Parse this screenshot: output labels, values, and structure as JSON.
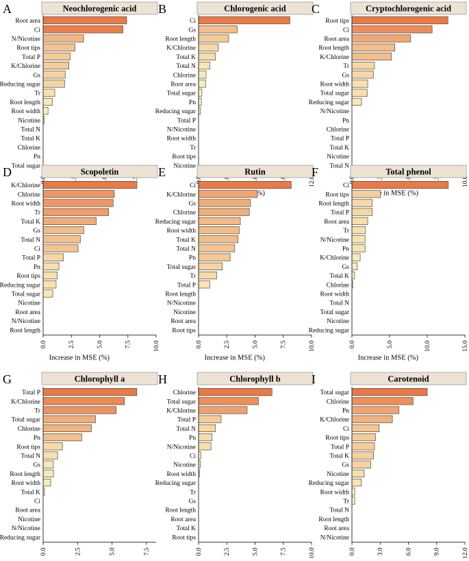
{
  "figure": {
    "xlabel_common": "Increase in MSE (%)"
  },
  "colors": {
    "title_fill": "#ece3d4",
    "bar_stroke": "#4a4a4a",
    "bar_high": "#ea7a45",
    "bar_low": "#fbf8c6"
  },
  "chart_data": [
    {
      "letter": "A",
      "type": "bar",
      "title": "Neochlorogenic acid",
      "xlabel": "Increase in MSE (%)",
      "xlim": [
        0,
        9.2
      ],
      "ticks": [
        0,
        2.5,
        5,
        7.5
      ],
      "tick_labels": [
        "0.0",
        "2.5",
        "5.0",
        "7.5"
      ],
      "categories": [
        "Root area",
        "Ci",
        "N/Nicotine",
        "Root tips",
        "Total P",
        "K/Chlorine",
        "Gs",
        "Reducing sugar",
        "Tr",
        "Root length",
        "Root width",
        "Nicotine",
        "Total N",
        "Total K",
        "Chlorine",
        "Pn",
        "Total sugar"
      ],
      "values": [
        6.8,
        6.5,
        3.3,
        2.6,
        2.2,
        2.1,
        1.8,
        1.75,
        0.95,
        0.75,
        0.4,
        0.1,
        0,
        0,
        0,
        0,
        0
      ]
    },
    {
      "letter": "B",
      "type": "bar",
      "title": "Chlorogenic acid",
      "xlabel": "Increase in MSE (%)",
      "xlim": [
        0,
        12
      ],
      "ticks": [
        0,
        3,
        6,
        9,
        12
      ],
      "tick_labels": [
        "0.0",
        "3.0",
        "6.0",
        "9.0",
        "12.0"
      ],
      "categories": [
        "Ci",
        "Gs",
        "Root length",
        "K/Chlorine",
        "Total K",
        "Total N",
        "Chlorine",
        "Root area",
        "Total sugar",
        "Pn",
        "Reducing sugar",
        "Total P",
        "N/Nicotine",
        "Root width",
        "Tr",
        "Root tips",
        "Nicotine"
      ],
      "values": [
        9.7,
        4.1,
        3.2,
        2.1,
        1.8,
        1.2,
        0.8,
        0.75,
        0.35,
        0.3,
        0.2,
        0,
        0,
        0,
        0,
        0,
        0
      ]
    },
    {
      "letter": "C",
      "type": "bar",
      "title": "Cryptochlorogenic acid",
      "xlabel": "Increase in MSE (%)",
      "xlim": [
        0,
        10
      ],
      "ticks": [
        0,
        2.5,
        5,
        7.5,
        10
      ],
      "tick_labels": [
        "0.0",
        "2.5",
        "5.0",
        "7.5",
        "10.0"
      ],
      "categories": [
        "Root tips",
        "Ci",
        "Root area",
        "Root length",
        "K/Chlorine",
        "Tr",
        "Gs",
        "Root width",
        "Total sugar",
        "Reducing sugar",
        "N/Nicotine",
        "Pn",
        "Chlorine",
        "Total P",
        "Total K",
        "Nicotine",
        "Total N"
      ],
      "values": [
        8.5,
        7.1,
        5.2,
        3.8,
        3.5,
        2.0,
        1.9,
        1.4,
        1.35,
        0.85,
        0,
        0,
        0,
        0,
        0,
        0,
        0
      ]
    },
    {
      "letter": "D",
      "type": "bar",
      "title": "Scopoletin",
      "xlabel": "Increase in MSE (%)",
      "xlim": [
        0,
        10
      ],
      "ticks": [
        0,
        2.5,
        5,
        7.5,
        10
      ],
      "tick_labels": [
        "0.0",
        "2.5",
        "5.0",
        "7.5",
        "10.0"
      ],
      "categories": [
        "K/Chlorine",
        "Chlorine",
        "Root width",
        "Tr",
        "Total K",
        "Gs",
        "Total N",
        "Ci",
        "Total P",
        "Pn",
        "Root tips",
        "Reducing sugar",
        "Total sugar",
        "Nicotine",
        "Root area",
        "N/Nicotine",
        "Root length"
      ],
      "values": [
        8.3,
        6.3,
        6.2,
        5.8,
        4.7,
        3.6,
        3.3,
        3.1,
        1.8,
        1.4,
        1.25,
        1.15,
        0.85,
        0,
        0,
        0,
        0
      ]
    },
    {
      "letter": "E",
      "type": "bar",
      "title": "Rutin",
      "xlabel": "Increase in MSE (%)",
      "xlim": [
        0,
        10
      ],
      "ticks": [
        0,
        2.5,
        5,
        7.5,
        10
      ],
      "tick_labels": [
        "0.0",
        "2.5",
        "5.0",
        "7.5",
        "10.0"
      ],
      "categories": [
        "Ci",
        "K/Chlorine",
        "Gs",
        "Chlorine",
        "Reducing sugar",
        "Root width",
        "Total K",
        "Total N",
        "Pn",
        "Total sugar",
        "Tr",
        "Total P",
        "Root length",
        "N/Nicotine",
        "Nicotine",
        "Root area",
        "Root tips"
      ],
      "values": [
        8.2,
        5.2,
        4.6,
        4.5,
        3.7,
        3.6,
        3.5,
        3.2,
        2.8,
        2.1,
        1.6,
        1.0,
        0,
        0,
        0,
        0,
        0
      ]
    },
    {
      "letter": "F",
      "type": "bar",
      "title": "Total phenol",
      "xlabel": "Increase in MSE (%)",
      "xlim": [
        0,
        15
      ],
      "ticks": [
        0,
        5,
        10,
        15
      ],
      "tick_labels": [
        "0.0",
        "5.0",
        "10.0",
        "15.0"
      ],
      "categories": [
        "Ci",
        "Root tips",
        "Root length",
        "Total P",
        "Root area",
        "Tr",
        "N/Nicotine",
        "Pn",
        "K/Chlorine",
        "Gs",
        "Total K",
        "Chlorine",
        "Root width",
        "Total N",
        "Total sugar",
        "Nicotine",
        "Reducing sugar"
      ],
      "values": [
        12.8,
        3.8,
        2.7,
        2.7,
        2.1,
        1.8,
        1.75,
        1.75,
        1.1,
        0.7,
        0.35,
        0.1,
        0,
        0,
        0,
        0,
        0
      ]
    },
    {
      "letter": "G",
      "type": "bar",
      "title": "Chlorophyll a",
      "xlabel": "Increase in MSE (%)",
      "xlim": [
        0,
        8.2
      ],
      "ticks": [
        0,
        2.5,
        5,
        7.5
      ],
      "tick_labels": [
        "0.0",
        "2.5",
        "5.0",
        "7.5"
      ],
      "categories": [
        "Total P",
        "K/Chlorine",
        "Tr",
        "Total sugar",
        "Chlorine",
        "Pn",
        "Root tips",
        "Total N",
        "Gs",
        "Root length",
        "Root width",
        "Total K",
        "Ci",
        "Root area",
        "Nicotine",
        "N/Nicotine",
        "Reducing sugar"
      ],
      "values": [
        6.8,
        5.9,
        5.3,
        3.8,
        3.5,
        2.8,
        1.4,
        1.05,
        0.75,
        0.75,
        0.55,
        0.1,
        0,
        0,
        0,
        0,
        0
      ]
    },
    {
      "letter": "H",
      "type": "bar",
      "title": "Chlorophyll b",
      "xlabel": "Increase in MSE (%)",
      "xlim": [
        0,
        10
      ],
      "ticks": [
        0,
        2.5,
        5,
        7.5,
        10
      ],
      "tick_labels": [
        "0.0",
        "2.5",
        "5.0",
        "7.5",
        "10.0"
      ],
      "categories": [
        "Chlorine",
        "Total sugar",
        "K/Chlorine",
        "Total P",
        "Total N",
        "Pn",
        "N/Nicotine",
        "Ci",
        "Nicotine",
        "Root width",
        "Reducing sugar",
        "Tr",
        "Gs",
        "Root length",
        "Root area",
        "Total K",
        "Root tips"
      ],
      "values": [
        6.5,
        5.3,
        4.3,
        2.0,
        1.5,
        1.2,
        1.1,
        0.2,
        0.15,
        0.05,
        0,
        0,
        0,
        0,
        0,
        0,
        0
      ]
    },
    {
      "letter": "I",
      "type": "bar",
      "title": "Carotenoid",
      "xlabel": "Increase in MSE (%)",
      "xlim": [
        0,
        12
      ],
      "ticks": [
        0,
        3,
        6,
        9,
        12
      ],
      "tick_labels": [
        "0.0",
        "3.0",
        "6.0",
        "9.0",
        "12.0"
      ],
      "categories": [
        "Total sugar",
        "Chlorine",
        "Pn",
        "K/Chlorine",
        "Ci",
        "Root tips",
        "Total P",
        "Total K",
        "Gs",
        "Nicotine",
        "Reducing sugar",
        "Root width",
        "Tr",
        "Total N",
        "Root length",
        "Root area",
        "N/Nicotine"
      ],
      "values": [
        8.0,
        6.5,
        5.0,
        4.3,
        2.9,
        2.5,
        2.4,
        2.3,
        2.0,
        1.3,
        1.0,
        0.3,
        0.3,
        0,
        0,
        0,
        0
      ]
    }
  ]
}
